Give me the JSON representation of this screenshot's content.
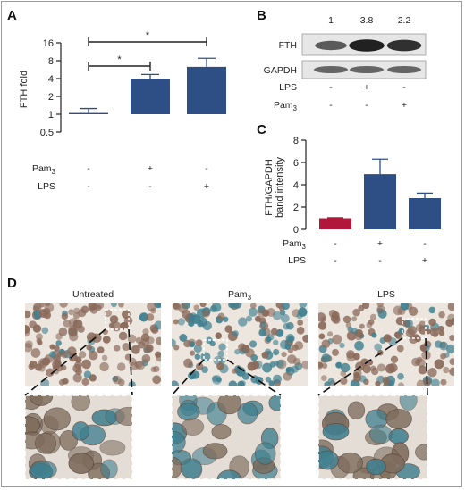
{
  "panels": {
    "A": "A",
    "B": "B",
    "C": "C",
    "D": "D"
  },
  "chart_data": [
    {
      "id": "A",
      "type": "bar",
      "ylabel": "FTH fold",
      "yscale": "log2",
      "ylim": [
        0.5,
        16
      ],
      "yticks": [
        "0.5",
        "1",
        "2",
        "4",
        "8",
        "16"
      ],
      "yticks_values": [
        0.5,
        1,
        2,
        4,
        8,
        16
      ],
      "conditions": [
        {
          "label": "Pam3",
          "values": [
            "-",
            "+",
            "-"
          ]
        },
        {
          "label": "LPS",
          "values": [
            "-",
            "-",
            "+"
          ]
        }
      ],
      "values": [
        1.05,
        4.0,
        6.3
      ],
      "errors": [
        0.2,
        0.7,
        2.5
      ],
      "bar_colors": [
        "#2e4f86",
        "#2e4f86",
        "#2e4f86"
      ],
      "significance": [
        {
          "from": 0,
          "to": 1,
          "label": "*"
        },
        {
          "from": 0,
          "to": 2,
          "label": "*"
        }
      ]
    },
    {
      "id": "C",
      "type": "bar",
      "ylabel": "FTH/GAPDH band intensity",
      "ylabel_lines": [
        "FTH/GAPDH",
        "band intensity"
      ],
      "ylim": [
        0,
        8
      ],
      "yticks": [
        "0",
        "2",
        "4",
        "6",
        "8"
      ],
      "yticks_values": [
        0,
        2,
        4,
        6,
        8
      ],
      "conditions": [
        {
          "label": "Pam3",
          "values": [
            "-",
            "+",
            "-"
          ]
        },
        {
          "label": "LPS",
          "values": [
            "-",
            "-",
            "+"
          ]
        }
      ],
      "values": [
        1.0,
        4.95,
        2.8
      ],
      "errors": [
        0.05,
        1.35,
        0.45
      ],
      "bar_colors": [
        "#b0183b",
        "#2e4f86",
        "#2e4f86"
      ]
    }
  ],
  "blot": {
    "fold_values": [
      "1",
      "3.8",
      "2.2"
    ],
    "rows": [
      "FTH",
      "GAPDH"
    ],
    "conditions": [
      {
        "label": "LPS",
        "values": [
          "-",
          "+",
          "-"
        ]
      },
      {
        "label": "Pam3",
        "values": [
          "-",
          "-",
          "+"
        ]
      }
    ]
  },
  "micrographs": {
    "titles": [
      "Untreated",
      "Pam3",
      "LPS"
    ],
    "colors": {
      "background": "#ece6df",
      "nucleus": "#8a6a5a",
      "stain": "#3f7f8f"
    }
  }
}
